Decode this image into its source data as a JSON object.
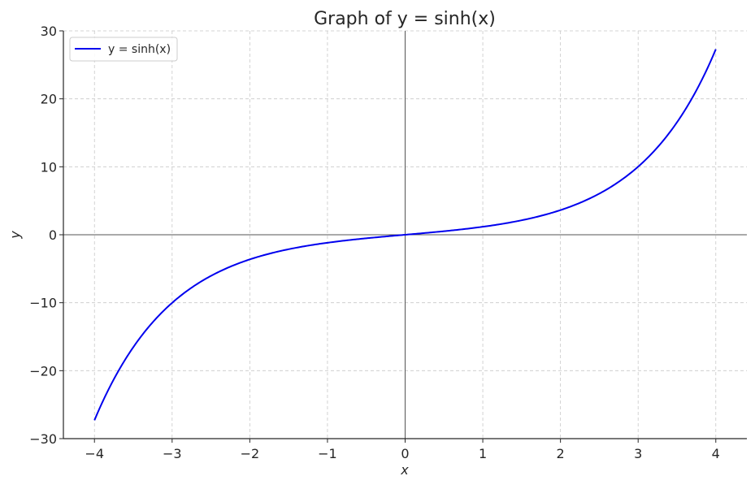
{
  "chart_data": {
    "type": "line",
    "title": "Graph of y = sinh(x)",
    "xlabel": "x",
    "ylabel": "y",
    "xlim": [
      -4.4,
      4.4
    ],
    "ylim": [
      -30,
      30
    ],
    "xticks": [
      -4,
      -3,
      -2,
      -1,
      0,
      1,
      2,
      3,
      4
    ],
    "xtick_labels": [
      "−4",
      "−3",
      "−2",
      "−1",
      "0",
      "1",
      "2",
      "3",
      "4"
    ],
    "yticks": [
      -30,
      -20,
      -10,
      0,
      10,
      20,
      30
    ],
    "ytick_labels": [
      "−30",
      "−20",
      "−10",
      "0",
      "10",
      "20",
      "30"
    ],
    "grid": true,
    "legend_position": "top-left",
    "series": [
      {
        "name": "y = sinh(x)",
        "color": "#0000ee",
        "x": [
          -4,
          -3.5,
          -3,
          -2.5,
          -2,
          -1.5,
          -1,
          -0.5,
          0,
          0.5,
          1,
          1.5,
          2,
          2.5,
          3,
          3.5,
          4
        ],
        "y": [
          -27.29,
          -16.54,
          -10.02,
          -6.05,
          -3.63,
          -2.13,
          -1.18,
          -0.52,
          0,
          0.52,
          1.18,
          2.13,
          3.63,
          6.05,
          10.02,
          16.54,
          27.29
        ]
      }
    ]
  }
}
